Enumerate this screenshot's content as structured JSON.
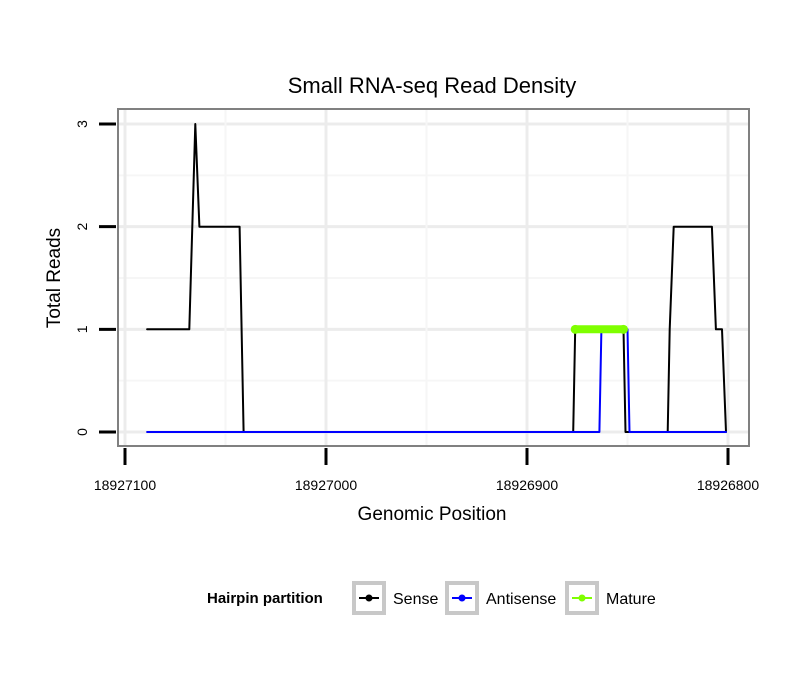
{
  "chart_data": {
    "type": "line",
    "title": "Small RNA-seq Read Density",
    "xlabel": "Genomic Position",
    "ylabel": "Total Reads",
    "xlim": [
      18927100,
      18926800
    ],
    "x_reversed": true,
    "ylim": [
      0,
      3
    ],
    "x_ticks": [
      18927100,
      18927000,
      18926900,
      18926800
    ],
    "x_tick_labels": [
      "18927100",
      "18927000",
      "18926900",
      "18926800"
    ],
    "y_ticks": [
      0,
      1,
      2,
      3
    ],
    "y_tick_labels": [
      "0",
      "1",
      "2",
      "3"
    ],
    "grid": true,
    "legend": {
      "title": "Hairpin partition",
      "placement": "bottom",
      "entries": [
        "Sense",
        "Antisense",
        "Mature"
      ]
    },
    "series": [
      {
        "name": "Sense",
        "color": "#000000",
        "x": [
          18927089,
          18927068,
          18927065,
          18927063,
          18927043,
          18927041,
          18926877,
          18926876,
          18926852,
          18926851,
          18926830,
          18926829,
          18926827,
          18926818,
          18926808,
          18926806,
          18926803,
          18926801
        ],
        "y": [
          1,
          1,
          3,
          2,
          2,
          0,
          0,
          1,
          1,
          0,
          0,
          1,
          2,
          2,
          2,
          1,
          1,
          0
        ]
      },
      {
        "name": "Antisense",
        "color": "#0000ff",
        "x": [
          18927089,
          18926864,
          18926863,
          18926850,
          18926849,
          18926801
        ],
        "y": [
          0,
          0,
          1,
          1,
          0,
          0
        ]
      },
      {
        "name": "Mature",
        "color": "#7fff00",
        "x": [
          18926876,
          18926852
        ],
        "y": [
          1,
          1
        ]
      }
    ]
  }
}
